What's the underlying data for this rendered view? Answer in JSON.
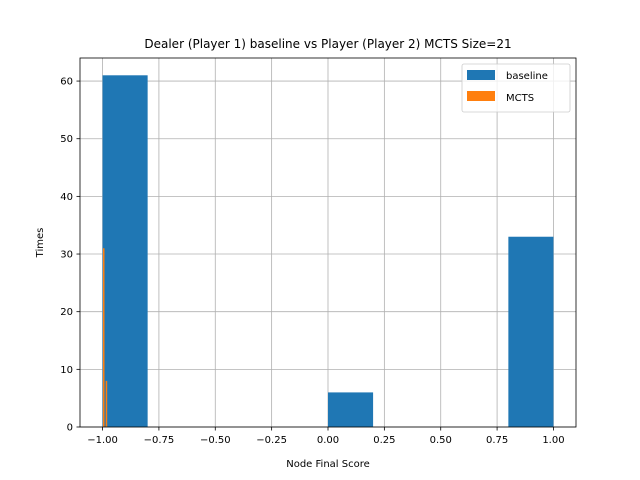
{
  "chart_data": {
    "type": "bar",
    "title": "Dealer (Player 1) baseline vs Player (Player 2) MCTS Size=21",
    "xlabel": "Node Final Score",
    "ylabel": "Times",
    "xlim": [
      -1.1,
      1.1
    ],
    "ylim": [
      0,
      64
    ],
    "xticks": [
      -1.0,
      -0.75,
      -0.5,
      -0.25,
      0.0,
      0.25,
      0.5,
      0.75,
      1.0
    ],
    "xtick_labels": [
      "−1.00",
      "−0.75",
      "−0.50",
      "−0.25",
      "0.00",
      "0.25",
      "0.50",
      "0.75",
      "1.00"
    ],
    "yticks": [
      0,
      10,
      20,
      30,
      40,
      50,
      60
    ],
    "ytick_labels": [
      "0",
      "10",
      "20",
      "30",
      "40",
      "50",
      "60"
    ],
    "grid": true,
    "legend_position": "upper-right",
    "series": [
      {
        "name": "baseline",
        "color": "#1f77b4",
        "bins": [
          {
            "x0": -1.0,
            "x1": -0.8,
            "count": 61
          },
          {
            "x0": -0.8,
            "x1": -0.6,
            "count": 0
          },
          {
            "x0": -0.6,
            "x1": -0.4,
            "count": 0
          },
          {
            "x0": -0.4,
            "x1": -0.2,
            "count": 0
          },
          {
            "x0": -0.2,
            "x1": 0.0,
            "count": 0
          },
          {
            "x0": 0.0,
            "x1": 0.2,
            "count": 6
          },
          {
            "x0": 0.2,
            "x1": 0.4,
            "count": 0
          },
          {
            "x0": 0.4,
            "x1": 0.6,
            "count": 0
          },
          {
            "x0": 0.6,
            "x1": 0.8,
            "count": 0
          },
          {
            "x0": 0.8,
            "x1": 1.0,
            "count": 33
          }
        ]
      },
      {
        "name": "MCTS",
        "color": "#ff7f0e",
        "bins": [
          {
            "x0": -1.0,
            "x1": -0.998,
            "count": 0
          },
          {
            "x0": -0.998,
            "x1": -0.996,
            "count": 31
          },
          {
            "x0": -0.996,
            "x1": -0.994,
            "count": 0
          },
          {
            "x0": -0.994,
            "x1": -0.992,
            "count": 0
          },
          {
            "x0": -0.992,
            "x1": -0.99,
            "count": 0
          },
          {
            "x0": -0.99,
            "x1": -0.988,
            "count": 0
          },
          {
            "x0": -0.988,
            "x1": -0.986,
            "count": 0
          },
          {
            "x0": -0.986,
            "x1": -0.984,
            "count": 8
          },
          {
            "x0": -0.984,
            "x1": -0.982,
            "count": 0
          },
          {
            "x0": -0.982,
            "x1": -0.98,
            "count": 0
          }
        ]
      }
    ]
  }
}
